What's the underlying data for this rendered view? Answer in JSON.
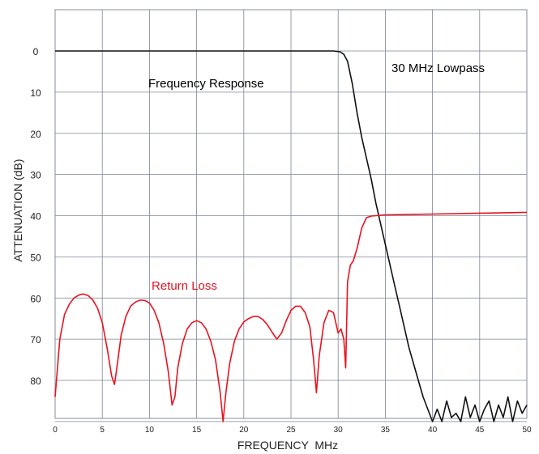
{
  "chart_data": {
    "type": "line",
    "title": "",
    "xlabel": "FREQUENCY  MHz",
    "ylabel": "ATTENUATION (dB)",
    "xlim": [
      0,
      50
    ],
    "ylim": [
      90,
      -10
    ],
    "y_inverted": true,
    "grid": true,
    "xticks": [
      0,
      5,
      10,
      15,
      20,
      25,
      30,
      35,
      40,
      45,
      50
    ],
    "yticks": [
      0,
      10,
      20,
      30,
      40,
      50,
      60,
      70,
      80
    ],
    "annotations": [
      {
        "id": "freq-response-label",
        "text": "Frequency Response",
        "color": "#000000"
      },
      {
        "id": "filter-title-label",
        "text": "30 MHz Lowpass",
        "color": "#000000"
      },
      {
        "id": "return-loss-label",
        "text": "Return Loss",
        "color": "#e8131f"
      }
    ],
    "series": [
      {
        "color": "#111111",
        "x": [
          0,
          5,
          10,
          15,
          20,
          25,
          28,
          29.5,
          30.2,
          30.6,
          31,
          31.5,
          32,
          32.5,
          33,
          33.5,
          34,
          34.5,
          35,
          35.5,
          36,
          36.5,
          37,
          37.5,
          38,
          38.5,
          39,
          39.5,
          40,
          40.5,
          41,
          41.5,
          42,
          42.5,
          43,
          43.5,
          44,
          44.5,
          45,
          45.5,
          46,
          46.5,
          47,
          47.5,
          48,
          48.5,
          49,
          49.5,
          50
        ],
        "values": [
          0,
          0,
          0,
          0,
          0,
          0,
          0,
          0,
          0.2,
          0.8,
          2.5,
          8,
          15,
          21,
          26,
          31,
          37,
          42,
          47,
          52,
          57,
          62,
          67,
          72,
          76,
          80,
          84,
          87,
          90,
          87,
          90,
          85,
          89,
          88,
          90,
          84,
          89,
          86,
          90,
          87,
          85,
          90,
          86,
          89,
          84,
          90,
          85,
          88,
          86
        ]
      },
      {
        "color": "#e8131f",
        "x": [
          0,
          0.5,
          1,
          1.5,
          2,
          2.5,
          3,
          3.5,
          4,
          4.5,
          5,
          5.5,
          6,
          6.3,
          6.6,
          7,
          7.5,
          8,
          8.5,
          9,
          9.5,
          10,
          10.5,
          11,
          11.5,
          12,
          12.4,
          12.7,
          13,
          13.5,
          14,
          14.5,
          15,
          15.5,
          16,
          16.5,
          17,
          17.5,
          17.8,
          18.1,
          18.5,
          19,
          19.5,
          20,
          20.5,
          21,
          21.5,
          22,
          22.5,
          23,
          23.5,
          24,
          24.5,
          25,
          25.5,
          26,
          26.5,
          27,
          27.4,
          27.7,
          28,
          28.5,
          29,
          29.5,
          30,
          30.3,
          30.6,
          30.8,
          31,
          31.3,
          31.6,
          32,
          32.5,
          33,
          33.5,
          34,
          35,
          40,
          45,
          50
        ],
        "values": [
          84,
          70,
          64,
          61.5,
          60,
          59.3,
          59,
          59.4,
          60.5,
          62.5,
          66,
          72,
          79,
          81,
          76,
          69,
          64.5,
          62,
          61,
          60.5,
          60.6,
          61.2,
          63,
          66,
          71,
          78,
          86,
          84,
          77,
          71,
          67.5,
          66,
          65.5,
          66,
          67.5,
          70.5,
          75,
          83,
          90,
          83,
          76,
          70.5,
          67.5,
          65.8,
          65,
          64.5,
          64.5,
          65.2,
          66.5,
          68.3,
          70,
          68.5,
          65.5,
          63,
          62,
          62,
          63.5,
          67,
          75,
          83,
          74,
          66,
          63,
          63.5,
          68.5,
          67.5,
          70,
          77,
          56,
          52,
          51,
          48,
          43,
          40.5,
          40.1,
          40,
          39.8,
          39.6,
          39.4,
          39.2
        ]
      }
    ]
  }
}
